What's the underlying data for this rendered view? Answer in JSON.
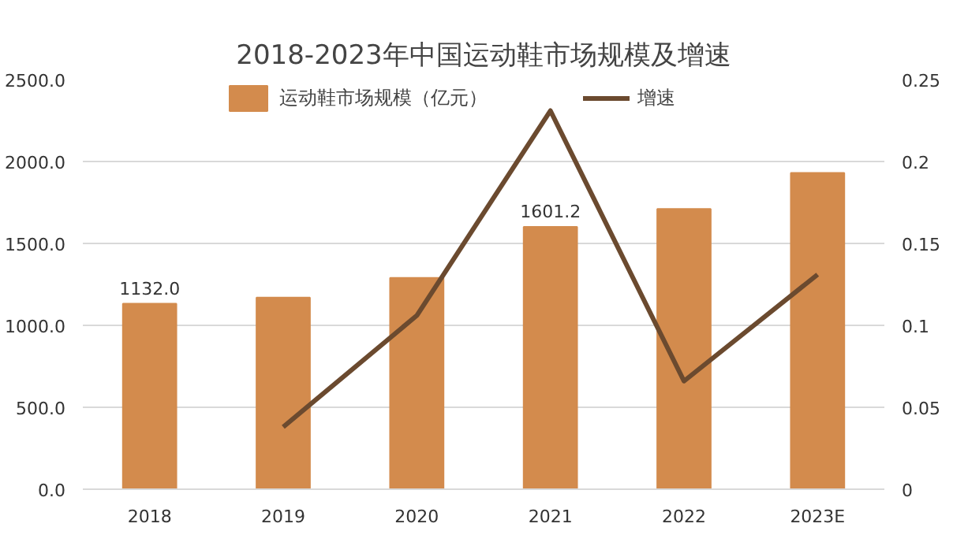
{
  "chart_data": {
    "type": "bar",
    "title": "2018-2023年中国运动鞋市场规模及增速",
    "categories": [
      "2018",
      "2019",
      "2020",
      "2021",
      "2022",
      "2023E"
    ],
    "series": [
      {
        "name": "运动鞋市场规模（亿元）",
        "color": "#d38b4d",
        "values": [
          1132.0,
          1170,
          1290,
          1601.2,
          1710,
          1930
        ],
        "value_labels": [
          "1132.0",
          null,
          null,
          "1601.2",
          null,
          null
        ]
      },
      {
        "name": "增速",
        "type": "line",
        "axis": "y2",
        "color": "#6b4a2f",
        "values": [
          null,
          0.038,
          0.106,
          0.231,
          0.066,
          0.131
        ]
      }
    ],
    "ylim": [
      0,
      2500
    ],
    "yticks": [
      {
        "value": 0,
        "label": "0.0"
      },
      {
        "value": 500,
        "label": "500.0"
      },
      {
        "value": 1000,
        "label": "1000.0"
      },
      {
        "value": 1500,
        "label": "1500.0"
      },
      {
        "value": 2000,
        "label": "2000.0"
      },
      {
        "value": 2500,
        "label": "2500.0"
      }
    ],
    "y2lim": [
      0,
      0.25
    ],
    "y2ticks": [
      0,
      0.05,
      0.1,
      0.15,
      0.2,
      0.25
    ],
    "grid": "y",
    "legend": "top",
    "marker": "none",
    "line_style": "solid"
  }
}
